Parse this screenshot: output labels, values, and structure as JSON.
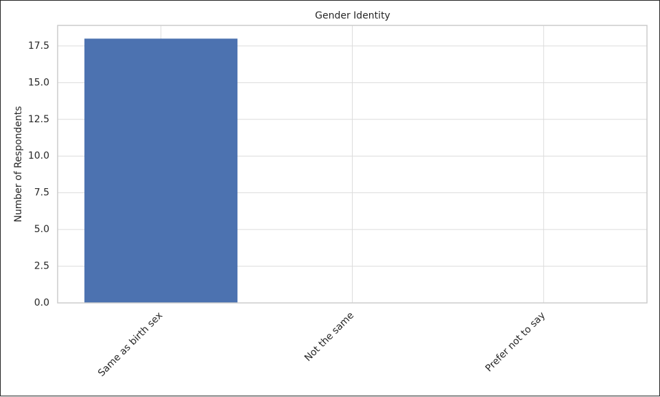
{
  "chart_data": {
    "type": "bar",
    "title": "Gender Identity",
    "y_label": "Number of Respondents",
    "categories": [
      "Same as birth sex",
      "Not the same",
      "Prefer not to say"
    ],
    "values": [
      18,
      0,
      0
    ],
    "color": "#4c72b0",
    "ylim": [
      0,
      18.9
    ],
    "yticks": [
      {
        "value": 0,
        "label": "0.0"
      },
      2.5,
      {
        "value": 5,
        "label": "5.0"
      },
      7.5,
      {
        "value": 10,
        "label": "10.0"
      },
      12.5,
      {
        "value": 15,
        "label": "15.0"
      },
      17.5
    ],
    "grid": true
  }
}
